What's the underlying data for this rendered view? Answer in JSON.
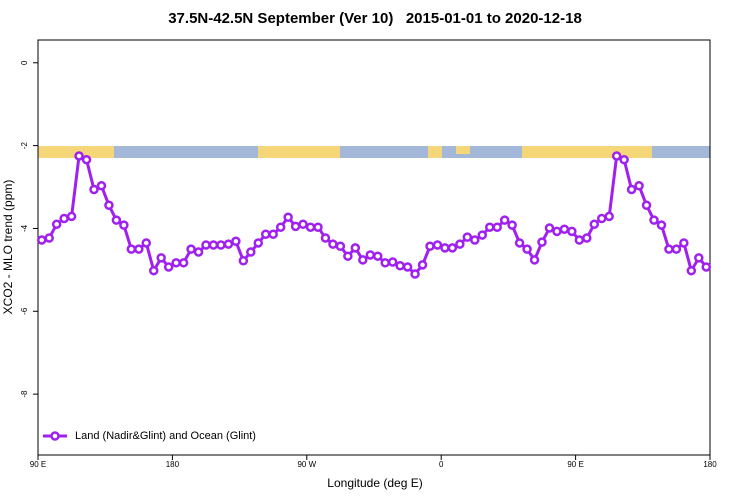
{
  "chart_data": {
    "type": "line",
    "title": "37.5N-42.5N September (Ver 10)   2015-01-01 to 2020-12-18",
    "x_label": "Longitude (deg E)",
    "y_label": "XCO2 - MLO trend (ppm)",
    "xlim": [
      90,
      540
    ],
    "xticks": [
      {
        "value": 90,
        "label": "90 E"
      },
      {
        "value": 180,
        "label": "180"
      },
      {
        "value": 270,
        "label": "90 W"
      },
      {
        "value": 360,
        "label": "0"
      },
      {
        "value": 450,
        "label": "90 E"
      },
      {
        "value": 540,
        "label": "180"
      }
    ],
    "ylim": [
      -9.47,
      0.55
    ],
    "yticks": [
      0,
      -2,
      -4,
      -6,
      -8
    ],
    "legend": "bottom-left",
    "x": [
      92.5,
      97.5,
      102.5,
      107.5,
      112.5,
      117.5,
      122.5,
      127.5,
      132.5,
      137.5,
      142.5,
      147.5,
      152.5,
      157.5,
      162.5,
      167.5,
      172.5,
      177.5,
      182.5,
      187.5,
      192.5,
      197.5,
      202.5,
      207.5,
      212.5,
      217.5,
      222.5,
      227.5,
      232.5,
      237.5,
      242.5,
      247.5,
      252.5,
      257.5,
      262.5,
      267.5,
      272.5,
      277.5,
      282.5,
      287.5,
      292.5,
      297.5,
      302.5,
      307.5,
      312.5,
      317.5,
      322.5,
      327.5,
      332.5,
      337.5,
      342.5,
      347.5,
      352.5,
      357.5,
      362.5,
      367.5,
      372.5,
      377.5,
      382.5,
      387.5,
      392.5,
      397.5,
      402.5,
      407.5,
      412.5,
      417.5,
      422.5,
      427.5,
      432.5,
      437.5,
      442.5,
      447.5,
      452.5,
      457.5,
      462.5,
      467.5,
      472.5,
      477.5,
      482.5,
      487.5,
      492.5,
      497.5,
      502.5,
      507.5,
      512.5,
      517.5,
      522.5,
      527.5,
      532.5,
      537.5
    ],
    "series": [
      {
        "name": "Land (Nadir&Glint) and Ocean (Glint)",
        "color": "#a020f0",
        "values": [
          -4.28,
          -4.23,
          -3.9,
          -3.76,
          -3.71,
          -2.25,
          -2.34,
          -3.06,
          -2.97,
          -3.44,
          -3.8,
          -3.92,
          -4.5,
          -4.5,
          -4.35,
          -5.02,
          -4.71,
          -4.93,
          -4.83,
          -4.83,
          -4.5,
          -4.57,
          -4.4,
          -4.4,
          -4.4,
          -4.38,
          -4.31,
          -4.78,
          -4.57,
          -4.35,
          -4.14,
          -4.14,
          -3.97,
          -3.73,
          -3.95,
          -3.9,
          -3.97,
          -3.97,
          -4.23,
          -4.38,
          -4.43,
          -4.67,
          -4.47,
          -4.76,
          -4.64,
          -4.67,
          -4.83,
          -4.81,
          -4.9,
          -4.93,
          -5.1,
          -4.88,
          -4.43,
          -4.4,
          -4.47,
          -4.47,
          -4.38,
          -4.21,
          -4.28,
          -4.16,
          -3.97,
          -3.97,
          -3.8,
          -3.92,
          -4.35,
          -4.5,
          -4.76,
          -4.33,
          -3.99,
          -4.07,
          -4.02,
          -4.07,
          -4.28,
          -4.23,
          -3.9,
          -3.76,
          -3.71,
          -2.25,
          -2.34,
          -3.06,
          -2.97,
          -3.44,
          -3.8,
          -3.92,
          -4.5,
          -4.5,
          -4.35,
          -5.02,
          -4.71,
          -4.93
        ]
      }
    ]
  }
}
